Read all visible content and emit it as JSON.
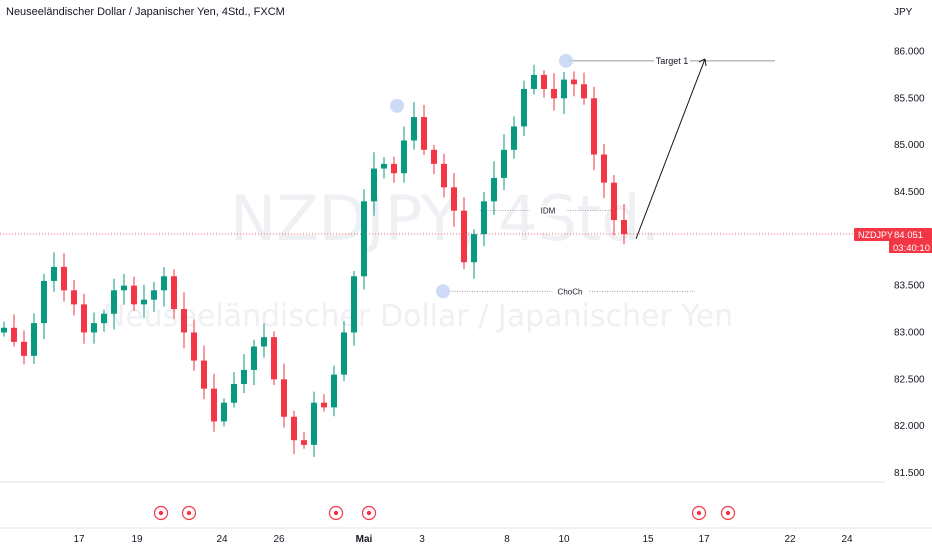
{
  "header": {
    "title": "Neuseeländischer Dollar / Japanischer Yen, 4Std., FXCM",
    "currency": "JPY"
  },
  "watermark": {
    "symbol": "NZDJPY, 4Std.",
    "name": "Neuseeländischer Dollar / Japanischer Yen"
  },
  "price_tag": {
    "symbol": "NZDJPY",
    "price": "84.051",
    "countdown": "03:40:10",
    "color": "#f23645"
  },
  "colors": {
    "up": "#089981",
    "down": "#f23645",
    "marker_fill": "#c5d5f5",
    "event_icon": "#f23645"
  },
  "chart_data": {
    "type": "candlestick",
    "ylim": [
      81.35,
      86.08
    ],
    "y_ticks": [
      "86.000",
      "85.500",
      "85.000",
      "84.500",
      "84.000",
      "83.500",
      "83.000",
      "82.500",
      "82.000",
      "81.500"
    ],
    "y_tick_values": [
      86.0,
      85.5,
      85.0,
      84.5,
      84.0,
      83.5,
      83.0,
      82.5,
      82.0,
      81.5
    ],
    "x_ticks": [
      "17",
      "19",
      "24",
      "26",
      "Mai",
      "3",
      "8",
      "10",
      "15",
      "17",
      "22",
      "24"
    ],
    "close_series": [
      83.05,
      82.9,
      82.75,
      83.1,
      83.55,
      83.7,
      83.45,
      83.3,
      83.0,
      83.1,
      83.2,
      83.45,
      83.5,
      83.3,
      83.35,
      83.45,
      83.6,
      83.25,
      83.0,
      82.7,
      82.4,
      82.05,
      82.25,
      82.45,
      82.6,
      82.85,
      82.95,
      82.5,
      82.1,
      81.85,
      81.8,
      82.25,
      82.2,
      82.55,
      83.0,
      83.6,
      84.4,
      84.75,
      84.8,
      84.7,
      85.05,
      85.3,
      84.95,
      84.8,
      84.55,
      84.3,
      83.75,
      84.05,
      84.4,
      84.65,
      84.95,
      85.2,
      85.6,
      85.75,
      85.6,
      85.5,
      85.7,
      85.65,
      85.5,
      84.9,
      84.6,
      84.2,
      84.05
    ],
    "last_price": 84.051,
    "annotations": [
      {
        "label": "Target 1",
        "level": 85.9
      },
      {
        "label": "IDM",
        "level": 84.3
      },
      {
        "label": "ChoCh",
        "level": 83.44
      }
    ],
    "markers": [
      {
        "level": 85.42
      },
      {
        "level": 85.9
      },
      {
        "level": 83.44
      }
    ],
    "events": 6
  }
}
